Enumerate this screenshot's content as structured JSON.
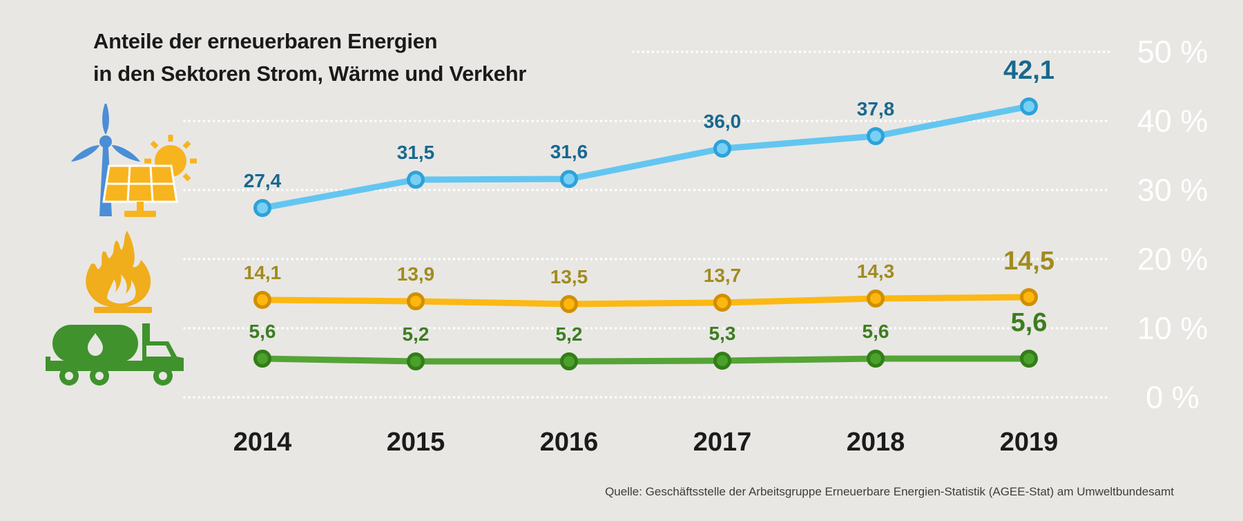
{
  "title": {
    "line1": "Anteile der erneuerbaren Energien",
    "line2": "in den Sektoren Strom, Wärme und Verkehr"
  },
  "source": "Quelle: Geschäftsstelle der Arbeitsgruppe Erneuerbare Energien-Statistik (AGEE-Stat) am Umweltbundesamt",
  "icons": [
    {
      "name": "wind-turbine-solar-panel-icon",
      "sector": "Strom"
    },
    {
      "name": "flame-icon",
      "sector": "Wärme"
    },
    {
      "name": "tanker-truck-icon",
      "sector": "Verkehr"
    }
  ],
  "colors": {
    "background": "#e8e7e4",
    "grid_color": "#ffffff",
    "tick_label_color": "#ffffff",
    "year_label_color": "#1b1b1b",
    "title_color": "#1a1a1a",
    "source_color": "#3d3d3d",
    "turbine_blue": "#4a8ed5",
    "solar_yellow": "#f8b41e",
    "flame_yellow": "#f0ad1c",
    "truck_green": "#3f922c"
  },
  "chart_data": {
    "type": "line",
    "title": "Anteile der erneuerbaren Energien in den Sektoren Strom, Wärme und Verkehr",
    "categories": [
      "2014",
      "2015",
      "2016",
      "2017",
      "2018",
      "2019"
    ],
    "series": [
      {
        "key": "strom",
        "name": "Strom",
        "color": "#63c6f0",
        "dot_fill": "#79d0f4",
        "dot_stroke": "#2da2d9",
        "label_color": "#19688f",
        "values": [
          27.4,
          31.5,
          31.6,
          36.0,
          37.8,
          42.1
        ],
        "labels": [
          "27,4",
          "31,5",
          "31,6",
          "36,0",
          "37,8",
          "42,1"
        ]
      },
      {
        "key": "waerme",
        "name": "Wärme",
        "color": "#fcb813",
        "dot_fill": "#fdb70f",
        "dot_stroke": "#d18f00",
        "label_color": "#a28b1f",
        "values": [
          14.1,
          13.9,
          13.5,
          13.7,
          14.3,
          14.5
        ],
        "labels": [
          "14,1",
          "13,9",
          "13,5",
          "13,7",
          "14,3",
          "14,5"
        ]
      },
      {
        "key": "verkehr",
        "name": "Verkehr",
        "color": "#55a437",
        "dot_fill": "#4aa12c",
        "dot_stroke": "#337d18",
        "label_color": "#3c7d20",
        "values": [
          5.6,
          5.2,
          5.2,
          5.3,
          5.6,
          5.6
        ],
        "labels": [
          "5,6",
          "5,2",
          "5,2",
          "5,3",
          "5,6",
          "5,6"
        ]
      }
    ],
    "yticks": [
      {
        "label": "50 %",
        "value": 50
      },
      {
        "label": "40 %",
        "value": 40
      },
      {
        "label": "30 %",
        "value": 30
      },
      {
        "label": "20 %",
        "value": 20
      },
      {
        "label": "10 %",
        "value": 10
      },
      {
        "label": "0 %",
        "value": 0
      }
    ],
    "ylim": [
      0,
      50
    ],
    "grid": true,
    "grid_style": "dotted-white",
    "legend_position": "none",
    "xlabel": "",
    "ylabel": ""
  }
}
